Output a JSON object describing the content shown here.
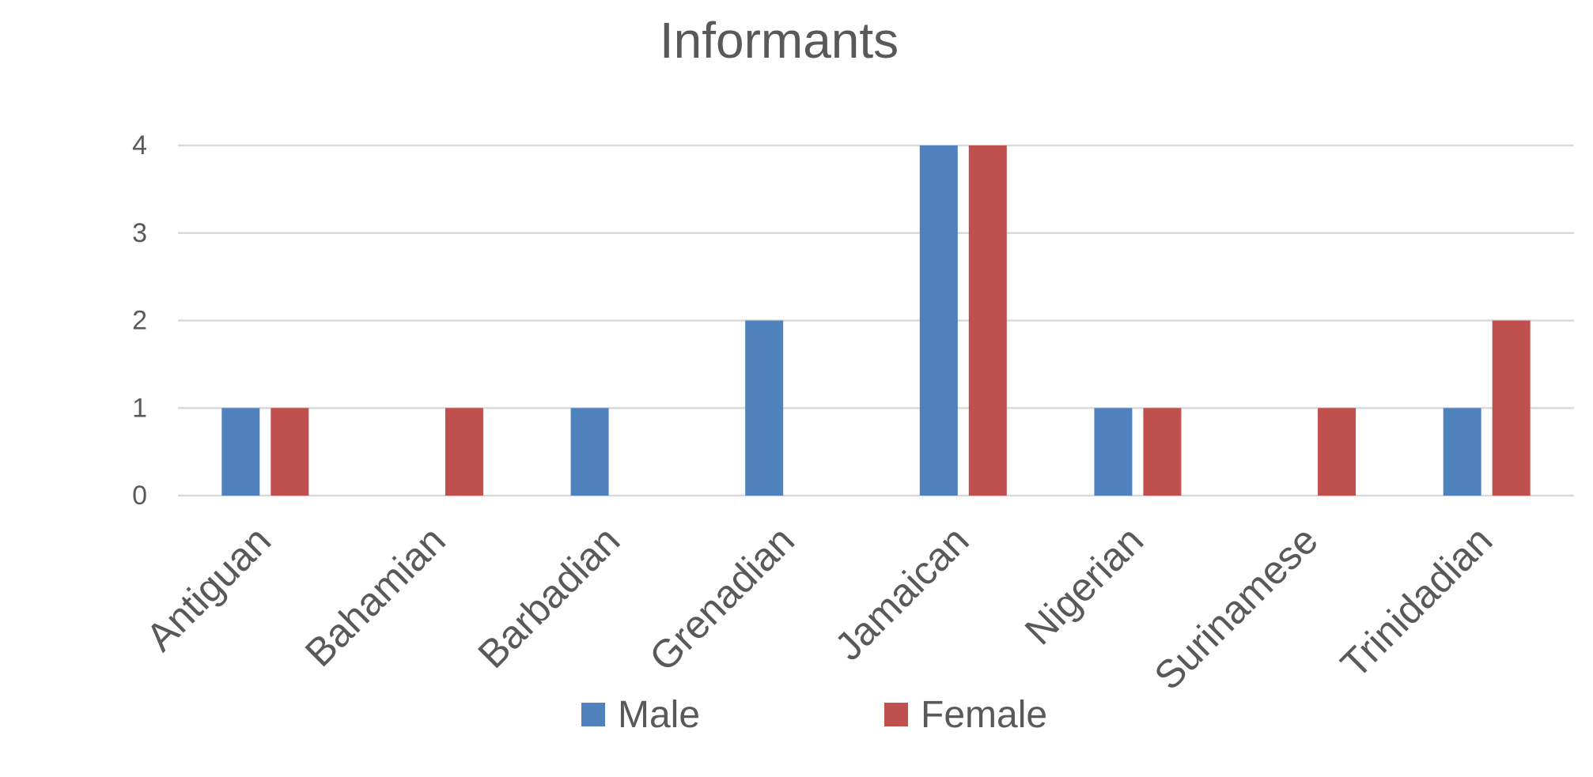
{
  "chart_data": {
    "type": "bar",
    "title": "Informants",
    "xlabel": "",
    "ylabel": "",
    "categories": [
      "Antiguan",
      "Bahamian",
      "Barbadian",
      "Grenadian",
      "Jamaican",
      "Nigerian",
      "Surinamese",
      "Trinidadian"
    ],
    "series": [
      {
        "name": "Male",
        "color": "#4F81BD",
        "values": [
          1,
          0,
          1,
          2,
          4,
          1,
          0,
          1
        ]
      },
      {
        "name": "Female",
        "color": "#C0504D",
        "values": [
          1,
          1,
          0,
          0,
          4,
          1,
          1,
          2
        ]
      }
    ],
    "ylim": [
      0,
      4
    ],
    "yticks": [
      "0",
      "1",
      "2",
      "3",
      "4"
    ],
    "grid": true,
    "legend_position": "bottom"
  }
}
